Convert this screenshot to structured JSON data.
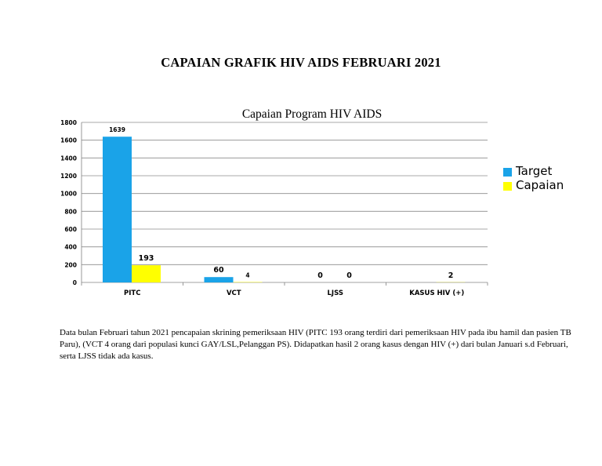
{
  "document": {
    "title": "CAPAIAN GRAFIK HIV AIDS FEBRUARI 2021",
    "description": "Data bulan Februari tahun 2021 pencapaian skrining pemeriksaan HIV (PITC 193 orang terdiri dari pemeriksaan HIV pada ibu hamil dan pasien TB Paru),  (VCT 4 orang  dari populasi kunci  GAY/LSL,Pelanggan PS). Didapatkan hasil 2 orang kasus dengan HIV (+)  dari bulan Januari s.d Februari, serta LJSS tidak ada kasus."
  },
  "chart_data": {
    "type": "bar",
    "title": "Capaian Program HIV AIDS",
    "xlabel": "",
    "ylabel": "",
    "categories": [
      "PITC",
      "VCT",
      "LJSS",
      "KASUS HIV (+)"
    ],
    "series": [
      {
        "name": "Target",
        "color": "#1aa3e8",
        "values": [
          1639,
          60,
          0,
          null
        ],
        "labels": [
          "1639",
          "60",
          "0",
          ""
        ]
      },
      {
        "name": "Capaian",
        "color": "#ffff00",
        "values": [
          193,
          4,
          0,
          2
        ],
        "labels": [
          "193",
          "4",
          "0",
          "2"
        ]
      }
    ],
    "ylim": [
      0,
      1800
    ],
    "yticks": [
      "0",
      "200",
      "400",
      "600",
      "800",
      "1000",
      "1200",
      "1400",
      "1600",
      "1800"
    ],
    "grid": true,
    "legend_position": "right"
  }
}
